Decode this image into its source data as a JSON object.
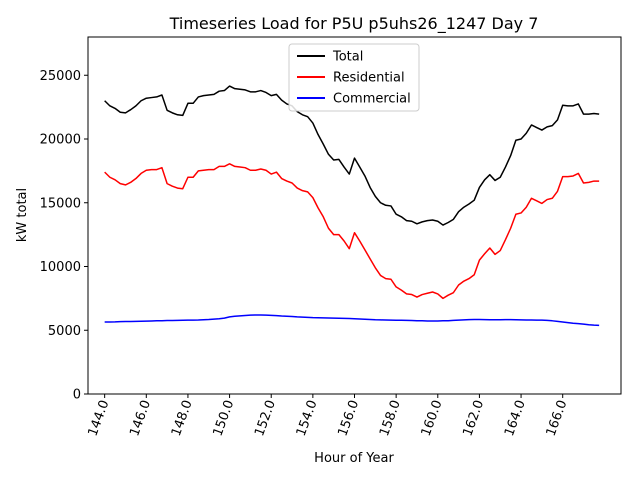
{
  "chart_data": {
    "type": "line",
    "title": "Timeseries Load for P5U p5uhs26_1247  Day 7",
    "xlabel": "Hour of Year",
    "ylabel": "kW total",
    "xlim": [
      143.2,
      168.8
    ],
    "ylim": [
      0,
      28000
    ],
    "xticks": [
      144,
      146,
      148,
      150,
      152,
      154,
      156,
      158,
      160,
      162,
      164,
      166
    ],
    "xtick_labels": [
      "144.0",
      "146.0",
      "148.0",
      "150.0",
      "152.0",
      "154.0",
      "156.0",
      "158.0",
      "160.0",
      "162.0",
      "164.0",
      "166.0"
    ],
    "yticks": [
      0,
      5000,
      10000,
      15000,
      20000,
      25000
    ],
    "ytick_labels": [
      "0",
      "5000",
      "10000",
      "15000",
      "20000",
      "25000"
    ],
    "legend_position": "upper center",
    "x": [
      144.0,
      144.25,
      144.5,
      144.75,
      145.0,
      145.25,
      145.5,
      145.75,
      146.0,
      146.25,
      146.5,
      146.75,
      147.0,
      147.25,
      147.5,
      147.75,
      148.0,
      148.25,
      148.5,
      148.75,
      149.0,
      149.25,
      149.5,
      149.75,
      150.0,
      150.25,
      150.5,
      150.75,
      151.0,
      151.25,
      151.5,
      151.75,
      152.0,
      152.25,
      152.5,
      152.75,
      153.0,
      153.25,
      153.5,
      153.75,
      154.0,
      154.25,
      154.5,
      154.75,
      155.0,
      155.25,
      155.5,
      155.75,
      156.0,
      156.25,
      156.5,
      156.75,
      157.0,
      157.25,
      157.5,
      157.75,
      158.0,
      158.25,
      158.5,
      158.75,
      159.0,
      159.25,
      159.5,
      159.75,
      160.0,
      160.25,
      160.5,
      160.75,
      161.0,
      161.25,
      161.5,
      161.75,
      162.0,
      162.25,
      162.5,
      162.75,
      163.0,
      163.25,
      163.5,
      163.75,
      164.0,
      164.25,
      164.5,
      164.75,
      165.0,
      165.25,
      165.5,
      165.75,
      166.0,
      166.25,
      166.5,
      166.75,
      167.0,
      167.25,
      167.5,
      167.75
    ],
    "series": [
      {
        "name": "Total",
        "color": "#000000",
        "values": [
          23000,
          22600,
          22400,
          22100,
          22050,
          22300,
          22600,
          23000,
          23200,
          23250,
          23300,
          23450,
          22250,
          22050,
          21900,
          21850,
          22800,
          22800,
          23300,
          23400,
          23450,
          23500,
          23750,
          23800,
          24150,
          23950,
          23900,
          23850,
          23700,
          23700,
          23800,
          23650,
          23400,
          23500,
          23050,
          22750,
          22600,
          22150,
          21900,
          21750,
          21250,
          20350,
          19600,
          18800,
          18350,
          18400,
          17800,
          17250,
          18500,
          17800,
          17100,
          16200,
          15500,
          15000,
          14800,
          14750,
          14100,
          13900,
          13600,
          13550,
          13350,
          13500,
          13600,
          13650,
          13550,
          13250,
          13450,
          13700,
          14300,
          14650,
          14900,
          15200,
          16200,
          16800,
          17200,
          16750,
          17000,
          17800,
          18700,
          19900,
          20000,
          20450,
          21100,
          20900,
          20700,
          20950,
          21050,
          21500,
          22650,
          22600,
          22600,
          22750,
          21950,
          21950,
          22000,
          21950
        ]
      },
      {
        "name": "Residential",
        "color": "#ff0000",
        "values": [
          17400,
          17000,
          16800,
          16500,
          16400,
          16600,
          16900,
          17300,
          17550,
          17600,
          17600,
          17750,
          16500,
          16300,
          16150,
          16100,
          17000,
          17000,
          17500,
          17550,
          17600,
          17600,
          17850,
          17850,
          18050,
          17850,
          17800,
          17750,
          17550,
          17550,
          17650,
          17550,
          17250,
          17400,
          16900,
          16700,
          16550,
          16150,
          15950,
          15850,
          15400,
          14600,
          13900,
          13000,
          12500,
          12500,
          12000,
          11400,
          12650,
          12000,
          11300,
          10600,
          9900,
          9300,
          9050,
          9000,
          8400,
          8150,
          7850,
          7800,
          7600,
          7800,
          7900,
          8000,
          7850,
          7500,
          7750,
          7950,
          8550,
          8850,
          9050,
          9350,
          10500,
          11000,
          11450,
          10950,
          11250,
          12100,
          13000,
          14100,
          14200,
          14650,
          15350,
          15150,
          14950,
          15250,
          15350,
          15900,
          17050,
          17050,
          17100,
          17300,
          16550,
          16600,
          16700,
          16700
        ]
      },
      {
        "name": "Commercial",
        "color": "#0000ff",
        "values": [
          5650,
          5650,
          5660,
          5680,
          5690,
          5690,
          5700,
          5710,
          5720,
          5730,
          5740,
          5750,
          5760,
          5760,
          5770,
          5780,
          5790,
          5790,
          5800,
          5820,
          5840,
          5870,
          5900,
          5950,
          6050,
          6100,
          6130,
          6160,
          6190,
          6200,
          6200,
          6190,
          6170,
          6150,
          6120,
          6100,
          6080,
          6050,
          6030,
          6010,
          5990,
          5980,
          5970,
          5960,
          5950,
          5940,
          5930,
          5920,
          5900,
          5880,
          5860,
          5840,
          5820,
          5810,
          5800,
          5790,
          5780,
          5780,
          5770,
          5760,
          5750,
          5740,
          5730,
          5730,
          5730,
          5740,
          5750,
          5770,
          5790,
          5810,
          5830,
          5840,
          5840,
          5830,
          5820,
          5820,
          5820,
          5830,
          5830,
          5820,
          5810,
          5800,
          5800,
          5790,
          5790,
          5770,
          5740,
          5700,
          5650,
          5600,
          5550,
          5520,
          5480,
          5430,
          5400,
          5380
        ]
      }
    ]
  }
}
